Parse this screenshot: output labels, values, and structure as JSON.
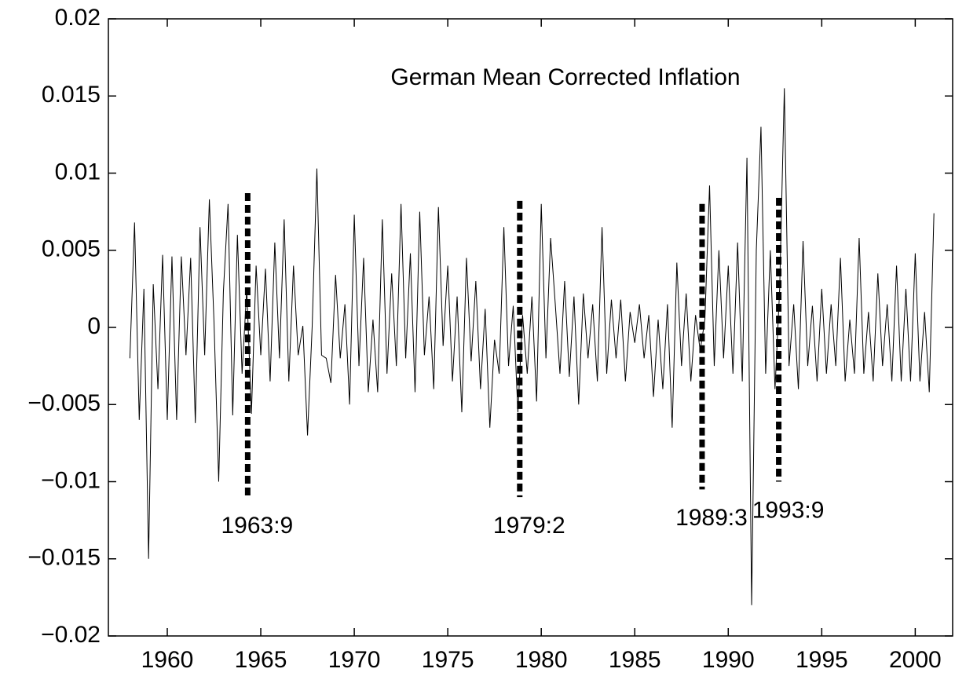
{
  "chart_data": {
    "type": "line",
    "title": "German Mean Corrected Inflation",
    "xlim": [
      1956.85,
      2002
    ],
    "xticks": [
      1960,
      1965,
      1970,
      1975,
      1980,
      1985,
      1990,
      1995,
      2000
    ],
    "ylim": [
      -0.02,
      0.02
    ],
    "yticks": [
      {
        "value": -0.02,
        "label": "−0.02"
      },
      {
        "value": -0.015,
        "label": "−0.015"
      },
      {
        "value": -0.01,
        "label": "−0.01"
      },
      {
        "value": -0.005,
        "label": "−0.005"
      },
      0,
      0.005,
      0.01,
      0.015,
      0.02
    ],
    "series": [
      {
        "color": "#000000",
        "x": [
          1958,
          1958.25,
          1958.5,
          1958.75,
          1959,
          1959.25,
          1959.5,
          1959.75,
          1960,
          1960.25,
          1960.5,
          1960.75,
          1961,
          1961.25,
          1961.5,
          1961.75,
          1962,
          1962.25,
          1962.5,
          1962.75,
          1963,
          1963.25,
          1963.5,
          1963.75,
          1964,
          1964.25,
          1964.5,
          1964.75,
          1965,
          1965.25,
          1965.5,
          1965.75,
          1966,
          1966.25,
          1966.5,
          1966.75,
          1967,
          1967.25,
          1967.5,
          1967.75,
          1968,
          1968.25,
          1968.5,
          1968.75,
          1969,
          1969.25,
          1969.5,
          1969.75,
          1970,
          1970.25,
          1970.5,
          1970.75,
          1971,
          1971.25,
          1971.5,
          1971.75,
          1972,
          1972.25,
          1972.5,
          1972.75,
          1973,
          1973.25,
          1973.5,
          1973.75,
          1974,
          1974.25,
          1974.5,
          1974.75,
          1975,
          1975.25,
          1975.5,
          1975.75,
          1976,
          1976.25,
          1976.5,
          1976.75,
          1977,
          1977.25,
          1977.5,
          1977.75,
          1978,
          1978.25,
          1978.5,
          1978.75,
          1979,
          1979.25,
          1979.5,
          1979.75,
          1980,
          1980.25,
          1980.5,
          1980.75,
          1981,
          1981.25,
          1981.5,
          1981.75,
          1982,
          1982.25,
          1982.5,
          1982.75,
          1983,
          1983.25,
          1983.5,
          1983.75,
          1984,
          1984.25,
          1984.5,
          1984.75,
          1985,
          1985.25,
          1985.5,
          1985.75,
          1986,
          1986.25,
          1986.5,
          1986.75,
          1987,
          1987.25,
          1987.5,
          1987.75,
          1988,
          1988.25,
          1988.5,
          1988.75,
          1989,
          1989.25,
          1989.5,
          1989.75,
          1990,
          1990.25,
          1990.5,
          1990.75,
          1991,
          1991.25,
          1991.5,
          1991.75,
          1992,
          1992.25,
          1992.5,
          1992.75,
          1993,
          1993.25,
          1993.5,
          1993.75,
          1994,
          1994.25,
          1994.5,
          1994.75,
          1995,
          1995.25,
          1995.5,
          1995.75,
          1996,
          1996.25,
          1996.5,
          1996.75,
          1997,
          1997.25,
          1997.5,
          1997.75,
          1998,
          1998.25,
          1998.5,
          1998.75,
          1999,
          1999.25,
          1999.5,
          1999.75,
          2000,
          2000.25,
          2000.5,
          2000.75,
          2001
        ],
        "values": [
          -0.002,
          0.0068,
          -0.006,
          0.0025,
          -0.015,
          0.0028,
          -0.004,
          0.0047,
          -0.006,
          0.0046,
          -0.006,
          0.0046,
          -0.0018,
          0.0045,
          -0.0062,
          0.0065,
          -0.0018,
          0.0083,
          0.0003,
          -0.01,
          0.0023,
          0.008,
          -0.0057,
          0.006,
          -0.003,
          0.0025,
          -0.0056,
          0.004,
          -0.0018,
          0.0038,
          -0.0035,
          0.0055,
          -0.002,
          0.007,
          -0.0035,
          0.004,
          -0.0018,
          0.0001,
          -0.007,
          0.0001,
          0.0103,
          -0.0018,
          -0.002,
          -0.0036,
          0.0034,
          -0.002,
          0.0015,
          -0.005,
          0.0073,
          -0.0025,
          0.0045,
          -0.0042,
          0.0005,
          -0.0042,
          0.007,
          -0.003,
          0.0035,
          -0.0025,
          0.008,
          -0.002,
          0.0048,
          -0.0042,
          0.0075,
          -0.0018,
          0.002,
          -0.004,
          0.0078,
          -0.0012,
          0.004,
          -0.0035,
          0.002,
          -0.0055,
          0.0045,
          -0.0022,
          0.003,
          -0.004,
          0.0012,
          -0.0065,
          -0.0008,
          -0.003,
          0.0065,
          -0.0025,
          0.0014,
          -0.0055,
          0.0008,
          -0.003,
          0.002,
          -0.0048,
          0.008,
          -0.002,
          0.0058,
          0.0015,
          -0.003,
          0.003,
          -0.0032,
          0.002,
          -0.005,
          0.0022,
          -0.002,
          0.0015,
          -0.0035,
          0.0065,
          -0.003,
          0.0018,
          -0.002,
          0.0018,
          -0.0035,
          0.001,
          -0.001,
          0.0015,
          -0.002,
          0.0008,
          -0.0045,
          0.0005,
          -0.004,
          0.0015,
          -0.0065,
          0.0042,
          -0.0025,
          0.0022,
          -0.0035,
          0.0008,
          -0.0015,
          0.0005,
          0.0092,
          -0.0025,
          0.005,
          -0.002,
          0.004,
          -0.003,
          0.0055,
          -0.0035,
          0.011,
          -0.018,
          0.005,
          0.013,
          -0.003,
          0.005,
          -0.004,
          0.0025,
          0.0155,
          -0.0025,
          0.0015,
          -0.004,
          0.0056,
          -0.0025,
          0.0014,
          -0.0035,
          0.0025,
          -0.003,
          0.0015,
          -0.0025,
          0.0045,
          -0.0035,
          0.0005,
          -0.003,
          0.0058,
          -0.003,
          0.001,
          -0.0035,
          0.0035,
          -0.0025,
          0.0015,
          -0.0035,
          0.004,
          -0.0035,
          0.0025,
          -0.0035,
          0.0048,
          -0.0035,
          0.001,
          -0.0042,
          0.0074
        ]
      }
    ],
    "breaks": [
      {
        "label": "1963:9",
        "x": 1964.3,
        "top": 0.0087,
        "bottom": -0.011
      },
      {
        "label": "1979:2",
        "x": 1978.85,
        "top": 0.0082,
        "bottom": -0.011
      },
      {
        "label": "1989:3",
        "x": 1988.6,
        "top": 0.008,
        "bottom": -0.0105
      },
      {
        "label": "1993:9",
        "x": 1992.7,
        "top": 0.0084,
        "bottom": -0.01
      }
    ]
  }
}
